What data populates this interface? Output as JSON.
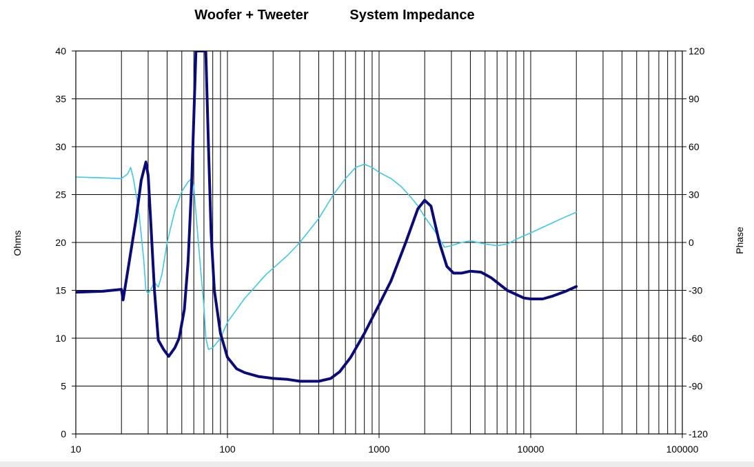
{
  "chart_data": {
    "type": "line",
    "title_part1": "Woofer + Tweeter",
    "title_part2": "System Impedance",
    "xscale": "log",
    "xlim": [
      10,
      100000
    ],
    "x_ticks": [
      "10",
      "100",
      "1000",
      "10000",
      "100000"
    ],
    "ylabel": "Ohms",
    "ylim": [
      0,
      40
    ],
    "y_ticks": [
      "0",
      "5",
      "10",
      "15",
      "20",
      "25",
      "30",
      "35",
      "40"
    ],
    "y2label": "Phase",
    "y2lim": [
      -120,
      120
    ],
    "y2_ticks": [
      "-120",
      "-90",
      "-60",
      "-30",
      "0",
      "30",
      "60",
      "90",
      "120"
    ],
    "grid": true,
    "series": [
      {
        "axis": "left",
        "color": "#0a0a78",
        "points": [
          [
            10,
            14.8
          ],
          [
            15,
            14.9
          ],
          [
            20,
            15.1
          ],
          [
            20.5,
            14.0
          ],
          [
            22,
            17.0
          ],
          [
            25,
            22.5
          ],
          [
            27,
            26.5
          ],
          [
            29,
            28.4
          ],
          [
            30,
            27.0
          ],
          [
            31,
            23.0
          ],
          [
            33,
            15.0
          ],
          [
            35,
            9.8
          ],
          [
            38,
            8.8
          ],
          [
            41,
            8.1
          ],
          [
            45,
            9.0
          ],
          [
            48,
            10.0
          ],
          [
            52,
            13.0
          ],
          [
            55,
            18.0
          ],
          [
            58,
            26.0
          ],
          [
            60,
            33.0
          ],
          [
            62,
            40
          ],
          [
            72,
            40
          ],
          [
            75,
            30.0
          ],
          [
            78,
            21.0
          ],
          [
            82,
            15.0
          ],
          [
            90,
            10.5
          ],
          [
            100,
            8.0
          ],
          [
            115,
            6.8
          ],
          [
            130,
            6.4
          ],
          [
            160,
            6.0
          ],
          [
            200,
            5.8
          ],
          [
            250,
            5.7
          ],
          [
            300,
            5.5
          ],
          [
            400,
            5.5
          ],
          [
            480,
            5.8
          ],
          [
            550,
            6.5
          ],
          [
            650,
            8.0
          ],
          [
            800,
            10.5
          ],
          [
            1000,
            13.5
          ],
          [
            1200,
            16.0
          ],
          [
            1500,
            20.0
          ],
          [
            1800,
            23.5
          ],
          [
            2000,
            24.4
          ],
          [
            2200,
            23.8
          ],
          [
            2500,
            20.0
          ],
          [
            2800,
            17.5
          ],
          [
            3100,
            16.8
          ],
          [
            3500,
            16.8
          ],
          [
            4000,
            17.0
          ],
          [
            4700,
            16.9
          ],
          [
            5500,
            16.3
          ],
          [
            7000,
            15.0
          ],
          [
            9000,
            14.2
          ],
          [
            10000,
            14.1
          ],
          [
            12000,
            14.1
          ],
          [
            14000,
            14.4
          ],
          [
            17000,
            14.9
          ],
          [
            20000,
            15.4
          ]
        ]
      },
      {
        "axis": "right",
        "color": "#3cc8e6",
        "points": [
          [
            10,
            41
          ],
          [
            15,
            40.5
          ],
          [
            20,
            40
          ],
          [
            22,
            43
          ],
          [
            23,
            47
          ],
          [
            24,
            40
          ],
          [
            26,
            20
          ],
          [
            28,
            -10
          ],
          [
            29,
            -30
          ],
          [
            30,
            -32
          ],
          [
            31,
            -30
          ],
          [
            33,
            -25
          ],
          [
            35,
            -28
          ],
          [
            37,
            -20
          ],
          [
            40,
            0
          ],
          [
            45,
            20
          ],
          [
            50,
            32
          ],
          [
            55,
            38
          ],
          [
            58,
            40
          ],
          [
            60,
            35
          ],
          [
            63,
            10
          ],
          [
            67,
            -20
          ],
          [
            70,
            -40
          ],
          [
            72,
            -60
          ],
          [
            75,
            -67
          ],
          [
            80,
            -66
          ],
          [
            90,
            -60
          ],
          [
            100,
            -50
          ],
          [
            130,
            -35
          ],
          [
            180,
            -20
          ],
          [
            250,
            -8
          ],
          [
            300,
            0
          ],
          [
            400,
            15
          ],
          [
            500,
            30
          ],
          [
            600,
            40
          ],
          [
            700,
            47
          ],
          [
            800,
            49
          ],
          [
            900,
            47
          ],
          [
            1000,
            44
          ],
          [
            1200,
            40
          ],
          [
            1400,
            35
          ],
          [
            1600,
            29
          ],
          [
            1800,
            23
          ],
          [
            2000,
            16
          ],
          [
            2300,
            8
          ],
          [
            2700,
            -3
          ],
          [
            3000,
            -2
          ],
          [
            3500,
            0
          ],
          [
            4000,
            1
          ],
          [
            5000,
            -1
          ],
          [
            6000,
            -2
          ],
          [
            7000,
            -1
          ],
          [
            8000,
            2
          ],
          [
            10000,
            6
          ],
          [
            13000,
            11
          ],
          [
            16000,
            15
          ],
          [
            20000,
            19
          ]
        ]
      }
    ]
  }
}
